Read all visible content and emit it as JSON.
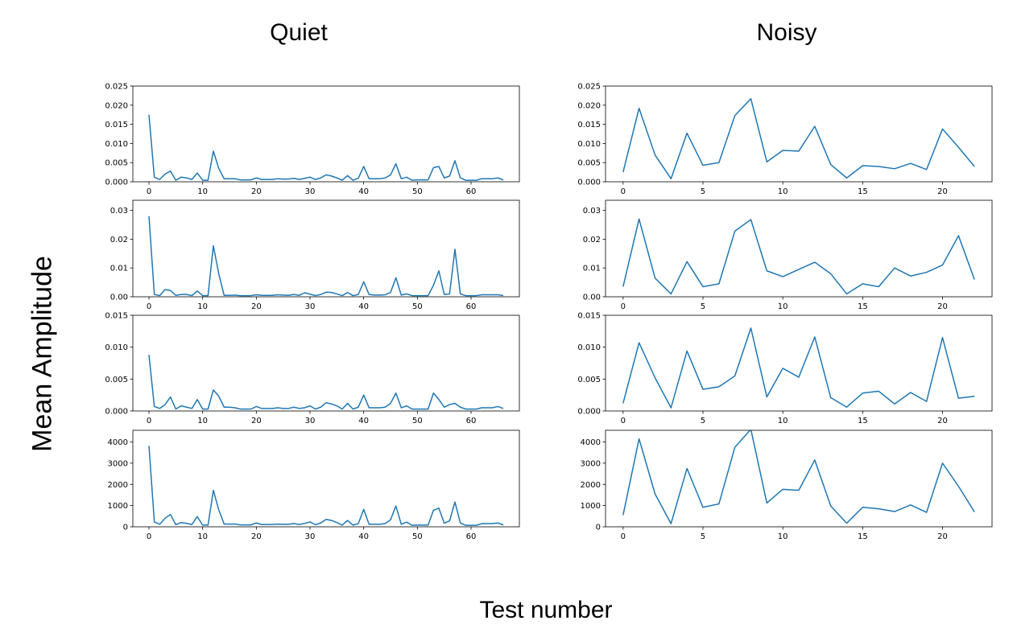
{
  "column_titles": {
    "quiet": "Quiet",
    "noisy": "Noisy"
  },
  "ylabel": "Mean Amplitude",
  "xlabel": "Test number",
  "colors": {
    "line": "#1f77b4"
  },
  "chart_data": [
    {
      "type": "line",
      "column": "Quiet",
      "row": 1,
      "xlim": [
        -3,
        69
      ],
      "ylim": [
        0,
        0.025
      ],
      "xticks": [
        0,
        10,
        20,
        30,
        40,
        50,
        60
      ],
      "yticks": [
        0.0,
        0.005,
        0.01,
        0.015,
        0.02,
        0.025
      ],
      "ytick_labels": [
        "0.000",
        "0.005",
        "0.010",
        "0.015",
        "0.020",
        "0.025"
      ],
      "x": [
        0,
        1,
        2,
        3,
        4,
        5,
        6,
        7,
        8,
        9,
        10,
        11,
        12,
        13,
        14,
        15,
        16,
        17,
        18,
        19,
        20,
        21,
        22,
        23,
        24,
        25,
        26,
        27,
        28,
        29,
        30,
        31,
        32,
        33,
        34,
        35,
        36,
        37,
        38,
        39,
        40,
        41,
        42,
        43,
        44,
        45,
        46,
        47,
        48,
        49,
        50,
        51,
        52,
        53,
        54,
        55,
        56,
        57,
        58,
        59,
        60,
        61,
        62,
        63,
        64,
        65,
        66
      ],
      "y": [
        0.0175,
        0.0012,
        0.0006,
        0.002,
        0.0028,
        0.0004,
        0.0012,
        0.001,
        0.0006,
        0.0023,
        0.0004,
        0.0004,
        0.008,
        0.0035,
        0.0008,
        0.0008,
        0.0008,
        0.0005,
        0.0005,
        0.0005,
        0.001,
        0.0006,
        0.0006,
        0.0006,
        0.0008,
        0.0007,
        0.0007,
        0.0009,
        0.0006,
        0.0009,
        0.0012,
        0.0006,
        0.001,
        0.0018,
        0.0015,
        0.001,
        0.0004,
        0.0016,
        0.0004,
        0.0009,
        0.004,
        0.0008,
        0.0008,
        0.0008,
        0.001,
        0.0018,
        0.0047,
        0.0008,
        0.0012,
        0.0004,
        0.0005,
        0.0005,
        0.0005,
        0.0037,
        0.004,
        0.001,
        0.0015,
        0.0055,
        0.001,
        0.0004,
        0.0004,
        0.0004,
        0.0008,
        0.0008,
        0.0008,
        0.001,
        0.0005
      ]
    },
    {
      "type": "line",
      "column": "Noisy",
      "row": 1,
      "xlim": [
        -1.1,
        23.1
      ],
      "ylim": [
        0,
        0.025
      ],
      "xticks": [
        0,
        5,
        10,
        15,
        20
      ],
      "yticks": [
        0.0,
        0.005,
        0.01,
        0.015,
        0.02,
        0.025
      ],
      "ytick_labels": [
        "0.000",
        "0.005",
        "0.010",
        "0.015",
        "0.020",
        "0.025"
      ],
      "x": [
        0,
        1,
        2,
        3,
        4,
        5,
        6,
        7,
        8,
        9,
        10,
        11,
        12,
        13,
        14,
        15,
        16,
        17,
        18,
        19,
        20,
        21,
        22
      ],
      "y": [
        0.0025,
        0.0192,
        0.007,
        0.0008,
        0.0127,
        0.0043,
        0.005,
        0.0173,
        0.0217,
        0.0052,
        0.0082,
        0.008,
        0.0145,
        0.0045,
        0.001,
        0.0042,
        0.004,
        0.0034,
        0.0048,
        0.0032,
        0.0138,
        0.009,
        0.004
      ]
    },
    {
      "type": "line",
      "column": "Quiet",
      "row": 2,
      "xlim": [
        -3,
        69
      ],
      "ylim": [
        0,
        0.0335
      ],
      "xticks": [
        0,
        10,
        20,
        30,
        40,
        50,
        60
      ],
      "yticks": [
        0.0,
        0.01,
        0.02,
        0.03
      ],
      "ytick_labels": [
        "0.00",
        "0.01",
        "0.02",
        "0.03"
      ],
      "x": [
        0,
        1,
        2,
        3,
        4,
        5,
        6,
        7,
        8,
        9,
        10,
        11,
        12,
        13,
        14,
        15,
        16,
        17,
        18,
        19,
        20,
        21,
        22,
        23,
        24,
        25,
        26,
        27,
        28,
        29,
        30,
        31,
        32,
        33,
        34,
        35,
        36,
        37,
        38,
        39,
        40,
        41,
        42,
        43,
        44,
        45,
        46,
        47,
        48,
        49,
        50,
        51,
        52,
        53,
        54,
        55,
        56,
        57,
        58,
        59,
        60,
        61,
        62,
        63,
        64,
        65,
        66
      ],
      "y": [
        0.028,
        0.0008,
        0.0004,
        0.0025,
        0.0022,
        0.0005,
        0.0008,
        0.0008,
        0.0004,
        0.002,
        0.0004,
        0.0004,
        0.0177,
        0.008,
        0.0005,
        0.0005,
        0.0006,
        0.0004,
        0.0004,
        0.0004,
        0.0007,
        0.0005,
        0.0005,
        0.0005,
        0.0007,
        0.0006,
        0.0005,
        0.0008,
        0.0005,
        0.0014,
        0.0009,
        0.0004,
        0.0008,
        0.0016,
        0.0015,
        0.001,
        0.0004,
        0.0015,
        0.0004,
        0.0008,
        0.0052,
        0.0008,
        0.0006,
        0.0006,
        0.0007,
        0.0015,
        0.0066,
        0.0006,
        0.001,
        0.0004,
        0.0004,
        0.0004,
        0.0004,
        0.004,
        0.009,
        0.0008,
        0.001,
        0.0165,
        0.001,
        0.0004,
        0.0004,
        0.0004,
        0.0007,
        0.0007,
        0.0007,
        0.0007,
        0.0004
      ]
    },
    {
      "type": "line",
      "column": "Noisy",
      "row": 2,
      "xlim": [
        -1.1,
        23.1
      ],
      "ylim": [
        0,
        0.0335
      ],
      "xticks": [
        0,
        5,
        10,
        15,
        20
      ],
      "yticks": [
        0.0,
        0.01,
        0.02,
        0.03
      ],
      "ytick_labels": [
        "0.00",
        "0.01",
        "0.02",
        "0.03"
      ],
      "x": [
        0,
        1,
        2,
        3,
        4,
        5,
        6,
        7,
        8,
        9,
        10,
        11,
        12,
        13,
        14,
        15,
        16,
        17,
        18,
        19,
        20,
        21,
        22
      ],
      "y": [
        0.0035,
        0.027,
        0.0065,
        0.001,
        0.0122,
        0.0035,
        0.0045,
        0.0228,
        0.0268,
        0.009,
        0.007,
        0.0095,
        0.012,
        0.008,
        0.001,
        0.0045,
        0.0035,
        0.01,
        0.0072,
        0.0085,
        0.011,
        0.0212,
        0.006
      ]
    },
    {
      "type": "line",
      "column": "Quiet",
      "row": 3,
      "xlim": [
        -3,
        69
      ],
      "ylim": [
        0,
        0.015
      ],
      "xticks": [
        0,
        10,
        20,
        30,
        40,
        50,
        60
      ],
      "yticks": [
        0.0,
        0.005,
        0.01,
        0.015
      ],
      "ytick_labels": [
        "0.000",
        "0.005",
        "0.010",
        "0.015"
      ],
      "x": [
        0,
        1,
        2,
        3,
        4,
        5,
        6,
        7,
        8,
        9,
        10,
        11,
        12,
        13,
        14,
        15,
        16,
        17,
        18,
        19,
        20,
        21,
        22,
        23,
        24,
        25,
        26,
        27,
        28,
        29,
        30,
        31,
        32,
        33,
        34,
        35,
        36,
        37,
        38,
        39,
        40,
        41,
        42,
        43,
        44,
        45,
        46,
        47,
        48,
        49,
        50,
        51,
        52,
        53,
        54,
        55,
        56,
        57,
        58,
        59,
        60,
        61,
        62,
        63,
        64,
        65,
        66
      ],
      "y": [
        0.0088,
        0.0007,
        0.0004,
        0.001,
        0.0022,
        0.0003,
        0.0008,
        0.0006,
        0.0004,
        0.0018,
        0.0003,
        0.0003,
        0.0033,
        0.0023,
        0.0006,
        0.0006,
        0.0005,
        0.0003,
        0.0003,
        0.0003,
        0.0007,
        0.0004,
        0.0004,
        0.0004,
        0.0005,
        0.0004,
        0.0004,
        0.0006,
        0.0004,
        0.0005,
        0.0008,
        0.0003,
        0.0006,
        0.0013,
        0.0011,
        0.0008,
        0.0003,
        0.0012,
        0.0003,
        0.0006,
        0.0025,
        0.0005,
        0.0005,
        0.0005,
        0.0006,
        0.0012,
        0.0028,
        0.0005,
        0.0008,
        0.0003,
        0.0003,
        0.0003,
        0.0003,
        0.0028,
        0.0018,
        0.0006,
        0.001,
        0.0012,
        0.0006,
        0.0003,
        0.0003,
        0.0003,
        0.0005,
        0.0005,
        0.0005,
        0.0007,
        0.0004
      ]
    },
    {
      "type": "line",
      "column": "Noisy",
      "row": 3,
      "xlim": [
        -1.1,
        23.1
      ],
      "ylim": [
        0,
        0.015
      ],
      "xticks": [
        0,
        5,
        10,
        15,
        20
      ],
      "yticks": [
        0.0,
        0.005,
        0.01,
        0.015
      ],
      "ytick_labels": [
        "0.000",
        "0.005",
        "0.010",
        "0.015"
      ],
      "x": [
        0,
        1,
        2,
        3,
        4,
        5,
        6,
        7,
        8,
        9,
        10,
        11,
        12,
        13,
        14,
        15,
        16,
        17,
        18,
        19,
        20,
        21,
        22
      ],
      "y": [
        0.0012,
        0.0107,
        0.0052,
        0.0005,
        0.0094,
        0.0034,
        0.0038,
        0.0055,
        0.013,
        0.0022,
        0.0067,
        0.0053,
        0.0116,
        0.0021,
        0.0006,
        0.0028,
        0.0031,
        0.0011,
        0.0029,
        0.0015,
        0.0115,
        0.002,
        0.0023
      ]
    },
    {
      "type": "line",
      "column": "Quiet",
      "row": 4,
      "xlim": [
        -3,
        69
      ],
      "ylim": [
        0,
        4550
      ],
      "xticks": [
        0,
        10,
        20,
        30,
        40,
        50,
        60
      ],
      "yticks": [
        0,
        1000,
        2000,
        3000,
        4000
      ],
      "ytick_labels": [
        "0",
        "1000",
        "2000",
        "3000",
        "4000"
      ],
      "x": [
        0,
        1,
        2,
        3,
        4,
        5,
        6,
        7,
        8,
        9,
        10,
        11,
        12,
        13,
        14,
        15,
        16,
        17,
        18,
        19,
        20,
        21,
        22,
        23,
        24,
        25,
        26,
        27,
        28,
        29,
        30,
        31,
        32,
        33,
        34,
        35,
        36,
        37,
        38,
        39,
        40,
        41,
        42,
        43,
        44,
        45,
        46,
        47,
        48,
        49,
        50,
        51,
        52,
        53,
        54,
        55,
        56,
        57,
        58,
        59,
        60,
        61,
        62,
        63,
        64,
        65,
        66
      ],
      "y": [
        3820,
        230,
        120,
        400,
        580,
        100,
        200,
        160,
        110,
        480,
        80,
        80,
        1720,
        800,
        130,
        130,
        130,
        90,
        90,
        90,
        180,
        110,
        110,
        110,
        130,
        120,
        120,
        150,
        110,
        160,
        230,
        100,
        180,
        350,
        300,
        200,
        80,
        300,
        80,
        150,
        820,
        120,
        120,
        120,
        150,
        330,
        980,
        120,
        220,
        70,
        80,
        80,
        80,
        780,
        880,
        170,
        280,
        1170,
        180,
        70,
        70,
        70,
        150,
        150,
        150,
        180,
        90
      ]
    },
    {
      "type": "line",
      "column": "Noisy",
      "row": 4,
      "xlim": [
        -1.1,
        23.1
      ],
      "ylim": [
        0,
        4550
      ],
      "xticks": [
        0,
        5,
        10,
        15,
        20
      ],
      "yticks": [
        0,
        1000,
        2000,
        3000,
        4000
      ],
      "ytick_labels": [
        "0",
        "1000",
        "2000",
        "3000",
        "4000"
      ],
      "x": [
        0,
        1,
        2,
        3,
        4,
        5,
        6,
        7,
        8,
        9,
        10,
        11,
        12,
        13,
        14,
        15,
        16,
        17,
        18,
        19,
        20,
        21,
        22
      ],
      "y": [
        550,
        4150,
        1550,
        150,
        2750,
        920,
        1080,
        3750,
        4600,
        1120,
        1770,
        1720,
        3150,
        980,
        170,
        920,
        850,
        720,
        1030,
        680,
        3000,
        1910,
        700
      ]
    }
  ]
}
